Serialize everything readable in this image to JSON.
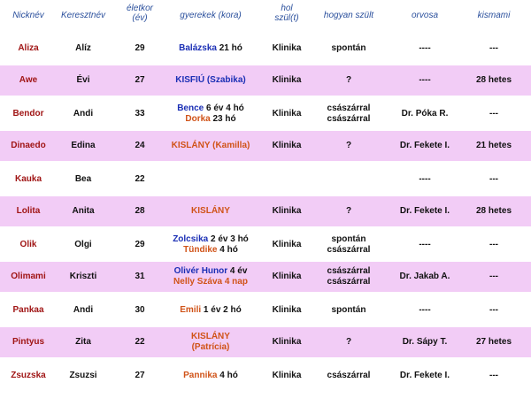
{
  "headers": {
    "nickname": "Nicknév",
    "firstname": "Keresztnév",
    "age_l1": "életkor",
    "age_l2": "(év)",
    "children": "gyerekek (kora)",
    "where_l1": "hol",
    "where_l2": "szül(t)",
    "how": "hogyan szült",
    "doctor": "orvosa",
    "pregnant": "kismami"
  },
  "colors": {
    "header_text": "#2a4f9c",
    "row_band": "#f2ccf6",
    "nickname": "#a01515",
    "child_name_blue": "#1b2fb5",
    "child_name_orange": "#d05318"
  },
  "rows": [
    {
      "nick": "Aliza",
      "first": "Alíz",
      "age": "29",
      "kids": [
        [
          {
            "t": "Balázska",
            "c": "blue"
          },
          {
            "t": " 21 hó",
            "c": "age"
          }
        ]
      ],
      "where": "Klinika",
      "how": [
        "spontán"
      ],
      "doctor": "----",
      "pregnant": "---"
    },
    {
      "nick": "Awe",
      "first": "Évi",
      "age": "27",
      "kids": [
        [
          {
            "t": "KISFIÚ (Szabika)",
            "c": "blue"
          }
        ]
      ],
      "where": "Klinika",
      "how": [
        "?"
      ],
      "doctor": "----",
      "pregnant": "28 hetes"
    },
    {
      "nick": "Bendor",
      "first": "Andi",
      "age": "33",
      "kids": [
        [
          {
            "t": "Bence",
            "c": "blue"
          },
          {
            "t": " 6 év 4 hó",
            "c": "age"
          }
        ],
        [
          {
            "t": "Dorka",
            "c": "orange"
          },
          {
            "t": " 23 hó",
            "c": "age"
          }
        ]
      ],
      "where": "Klinika",
      "how": [
        "császárral",
        "császárral"
      ],
      "doctor": "Dr. Póka R.",
      "pregnant": "---"
    },
    {
      "nick": "Dinaedo",
      "first": "Edina",
      "age": "24",
      "kids": [
        [
          {
            "t": "KISLÁNY (Kamilla)",
            "c": "orange"
          }
        ]
      ],
      "where": "Klinika",
      "how": [
        "?"
      ],
      "doctor": "Dr. Fekete I.",
      "pregnant": "21 hetes"
    },
    {
      "nick": "Kauka",
      "first": "Bea",
      "age": "22",
      "kids": [],
      "where": "",
      "how": [],
      "doctor": "----",
      "pregnant": "---"
    },
    {
      "nick": "Lolita",
      "first": "Anita",
      "age": "28",
      "kids": [
        [
          {
            "t": "KISLÁNY",
            "c": "orange"
          }
        ]
      ],
      "where": "Klinika",
      "how": [
        "?"
      ],
      "doctor": "Dr. Fekete I.",
      "pregnant": "28 hetes"
    },
    {
      "nick": "Olik",
      "first": "Olgi",
      "age": "29",
      "kids": [
        [
          {
            "t": "Zolcsika",
            "c": "blue"
          },
          {
            "t": " 2 év 3 hó",
            "c": "age"
          }
        ],
        [
          {
            "t": "Tündike",
            "c": "orange"
          },
          {
            "t": " 4 hó",
            "c": "age"
          }
        ]
      ],
      "where": "Klinika",
      "how": [
        "spontán",
        "császárral"
      ],
      "doctor": "----",
      "pregnant": "---"
    },
    {
      "nick": "Olimami",
      "first": "Kriszti",
      "age": "31",
      "kids": [
        [
          {
            "t": "Olivér Hunor",
            "c": "blue"
          },
          {
            "t": " 4 év",
            "c": "age"
          }
        ],
        [
          {
            "t": "Nelly Száva 4 nap",
            "c": "orange"
          }
        ]
      ],
      "where": "Klinika",
      "how": [
        "császárral",
        "császárral"
      ],
      "doctor": "Dr. Jakab A.",
      "pregnant": "---"
    },
    {
      "nick": "Pankaa",
      "first": "Andi",
      "age": "30",
      "kids": [
        [
          {
            "t": "Emili",
            "c": "orange"
          },
          {
            "t": " 1 év 2 hó",
            "c": "age"
          }
        ]
      ],
      "where": "Klinika",
      "how": [
        "spontán"
      ],
      "doctor": "----",
      "pregnant": "---"
    },
    {
      "nick": "Pintyus",
      "first": "Zita",
      "age": "22",
      "kids": [
        [
          {
            "t": "KISLÁNY",
            "c": "orange"
          }
        ],
        [
          {
            "t": "(Patrícia)",
            "c": "orange"
          }
        ]
      ],
      "where": "Klinika",
      "how": [
        "?"
      ],
      "doctor": "Dr. Sápy T.",
      "pregnant": "27 hetes"
    },
    {
      "nick": "Zsuzska",
      "first": "Zsuzsi",
      "age": "27",
      "kids": [
        [
          {
            "t": "Pannika",
            "c": "orange"
          },
          {
            "t": "  4 hó",
            "c": "age"
          }
        ]
      ],
      "where": "Klinika",
      "how": [
        "császárral"
      ],
      "doctor": "Dr. Fekete I.",
      "pregnant": "---"
    }
  ]
}
